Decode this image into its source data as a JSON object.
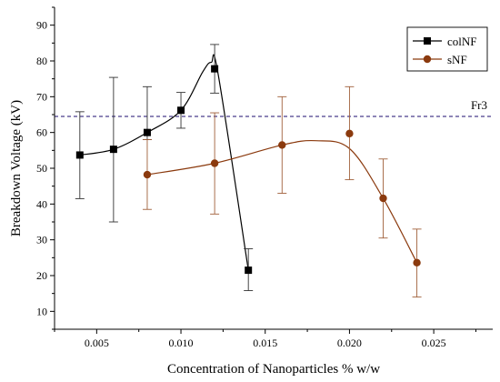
{
  "chart_data": {
    "type": "line",
    "xlabel": "Concentration of Nanoparticles % w/w",
    "ylabel": "Breakdown Voltage (kV)",
    "xlim": [
      0.0025,
      0.0285
    ],
    "ylim": [
      5,
      95
    ],
    "xticks": [
      0.005,
      0.01,
      0.015,
      0.02,
      0.025
    ],
    "xtick_labels": [
      "0.005",
      "0.010",
      "0.015",
      "0.020",
      "0.025"
    ],
    "yticks": [
      10,
      20,
      30,
      40,
      50,
      60,
      70,
      80,
      90
    ],
    "ytick_labels": [
      "10",
      "20",
      "30",
      "40",
      "50",
      "60",
      "70",
      "80",
      "90"
    ],
    "grid": false,
    "legend_position": "top-right",
    "reference_line": {
      "label": "Fr3",
      "y": 64.5,
      "color": "#4b3f8c"
    },
    "series": [
      {
        "name": "colNF",
        "color": "#000000",
        "marker": "square",
        "x": [
          0.004,
          0.006,
          0.008,
          0.01,
          0.012,
          0.014
        ],
        "y": [
          53.7,
          55.3,
          60.0,
          66.2,
          77.8,
          21.5
        ],
        "err_low": [
          41.5,
          35.0,
          58.0,
          61.2,
          71.0,
          15.8
        ],
        "err_high": [
          65.8,
          75.4,
          72.8,
          71.2,
          84.6,
          27.5
        ],
        "curve": [
          [
            0.004,
            53.7
          ],
          [
            0.006,
            55.3
          ],
          [
            0.008,
            60.0
          ],
          [
            0.01,
            66.2
          ],
          [
            0.0113,
            77.0
          ],
          [
            0.0118,
            79.6
          ],
          [
            0.0122,
            76.5
          ],
          [
            0.014,
            21.5
          ]
        ]
      },
      {
        "name": "sNF",
        "color": "#8b3a0e",
        "marker": "circle",
        "x": [
          0.008,
          0.012,
          0.016,
          0.02,
          0.022,
          0.024
        ],
        "y": [
          48.2,
          51.4,
          56.5,
          59.7,
          41.6,
          23.6
        ],
        "err_low": [
          38.5,
          37.2,
          43.0,
          46.8,
          30.5,
          14.0
        ],
        "err_high": [
          58.0,
          65.5,
          70.0,
          72.8,
          52.6,
          33.0
        ],
        "curve": [
          [
            0.008,
            48.2
          ],
          [
            0.012,
            51.4
          ],
          [
            0.016,
            56.5
          ],
          [
            0.018,
            57.7
          ],
          [
            0.02,
            55.5
          ],
          [
            0.022,
            41.6
          ],
          [
            0.024,
            23.6
          ]
        ]
      }
    ]
  }
}
